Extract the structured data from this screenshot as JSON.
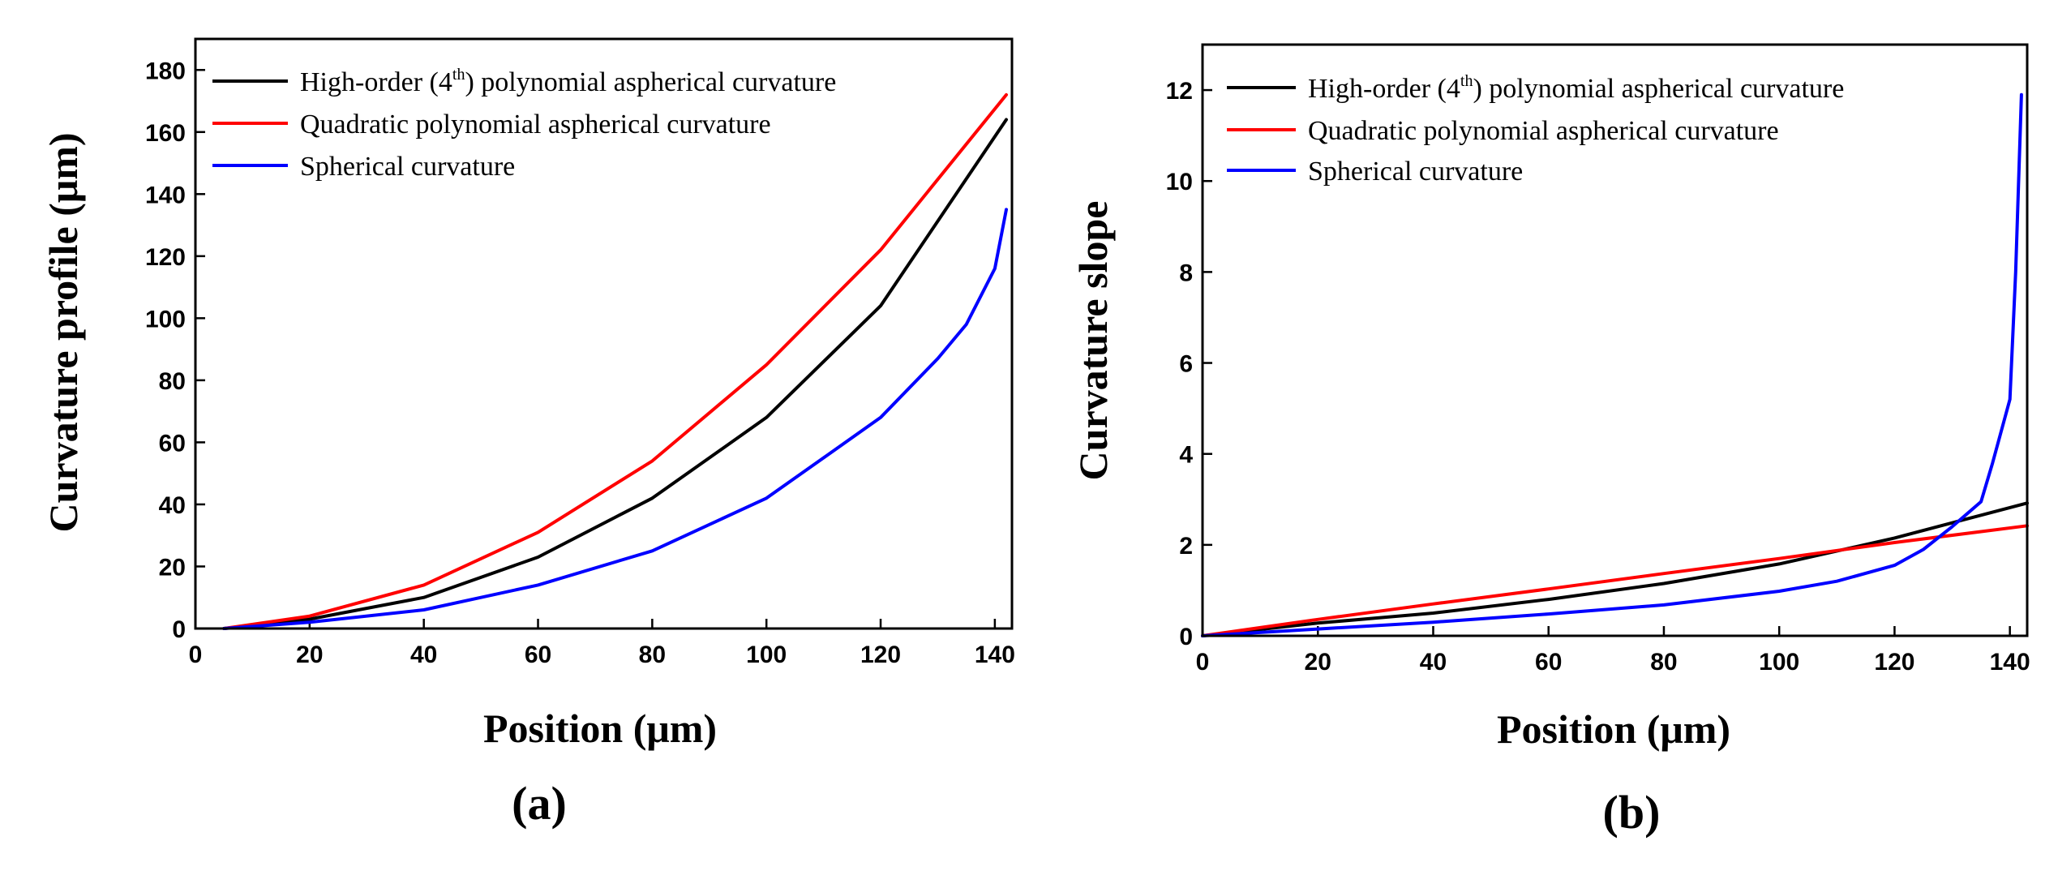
{
  "chart_data": [
    {
      "type": "line",
      "panel_label": "(a)",
      "xlabel": "Position (μm)",
      "ylabel": "Curvature profile (μm)",
      "xlim": [
        0,
        143
      ],
      "ylim": [
        0,
        190
      ],
      "xticks": [
        0,
        20,
        40,
        60,
        80,
        100,
        120,
        140
      ],
      "yticks": [
        0,
        20,
        40,
        60,
        80,
        100,
        120,
        140,
        160,
        180
      ],
      "legend_position": "top-left",
      "series": [
        {
          "name": "High-order (4th) polynomial aspherical curvature",
          "legend_main": "High-order (4",
          "legend_sup": "th",
          "legend_rest": ") polynomial aspherical curvature",
          "color": "#000000",
          "x": [
            5,
            20,
            40,
            60,
            80,
            100,
            120,
            142
          ],
          "y": [
            0,
            3,
            10,
            23,
            42,
            68,
            104,
            164
          ]
        },
        {
          "name": "Quadratic polynomial aspherical curvature",
          "color": "#ff0000",
          "x": [
            5,
            20,
            40,
            60,
            80,
            100,
            120,
            142
          ],
          "y": [
            0,
            4,
            14,
            31,
            54,
            85,
            122,
            172
          ]
        },
        {
          "name": "Spherical curvature",
          "color": "#0000ff",
          "x": [
            5,
            20,
            40,
            60,
            80,
            100,
            120,
            130,
            135,
            140,
            142
          ],
          "y": [
            0,
            2,
            6,
            14,
            25,
            42,
            68,
            87,
            98,
            116,
            135
          ]
        }
      ]
    },
    {
      "type": "line",
      "panel_label": "(b)",
      "xlabel": "Position (μm)",
      "ylabel": "Curvature slope",
      "xlim": [
        0,
        143
      ],
      "ylim": [
        0,
        13
      ],
      "xticks": [
        0,
        20,
        40,
        60,
        80,
        100,
        120,
        140
      ],
      "yticks": [
        0,
        2,
        4,
        6,
        8,
        10,
        12
      ],
      "legend_position": "top-left",
      "series": [
        {
          "name": "High-order (4th) polynomial aspherical curvature",
          "legend_main": "High-order (4",
          "legend_sup": "th",
          "legend_rest": ") polynomial aspherical curvature",
          "color": "#000000",
          "x": [
            0,
            20,
            40,
            60,
            80,
            100,
            120,
            143
          ],
          "y": [
            0,
            0.28,
            0.5,
            0.8,
            1.15,
            1.58,
            2.15,
            2.92
          ]
        },
        {
          "name": "Quadratic polynomial aspherical curvature",
          "color": "#ff0000",
          "x": [
            0,
            20,
            40,
            60,
            80,
            100,
            120,
            143
          ],
          "y": [
            0,
            0.36,
            0.7,
            1.03,
            1.37,
            1.7,
            2.05,
            2.42
          ]
        },
        {
          "name": "Spherical curvature",
          "color": "#0000ff",
          "x": [
            0,
            20,
            40,
            60,
            80,
            100,
            110,
            120,
            125,
            130,
            135,
            137,
            140,
            141,
            142
          ],
          "y": [
            0,
            0.15,
            0.3,
            0.48,
            0.68,
            0.98,
            1.2,
            1.55,
            1.9,
            2.4,
            2.95,
            3.8,
            5.2,
            8.0,
            11.9
          ]
        }
      ]
    }
  ]
}
